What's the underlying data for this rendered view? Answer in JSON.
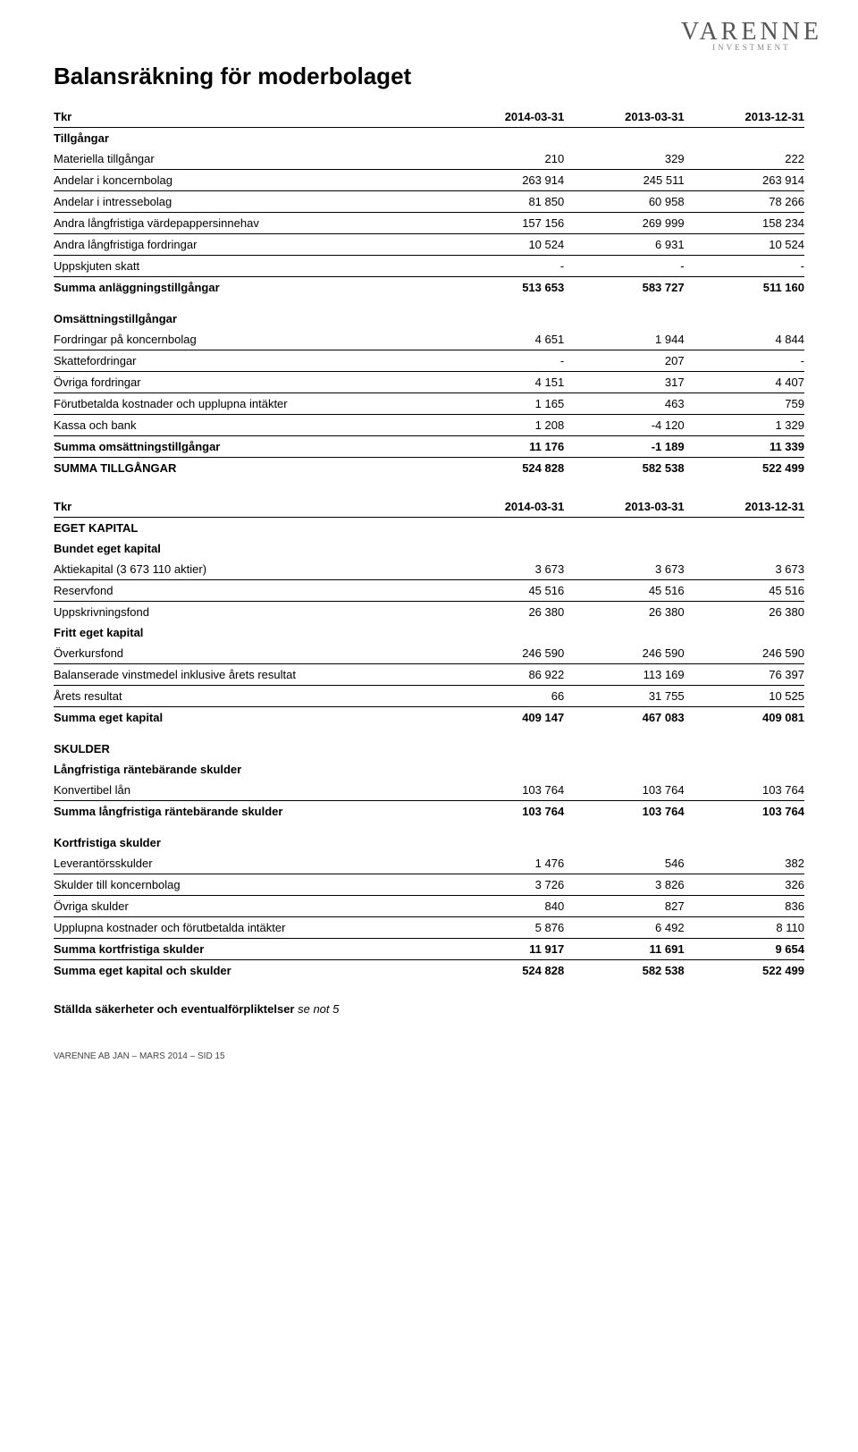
{
  "logo": {
    "top": "VARENNE",
    "bottom": "INVESTMENT"
  },
  "title": "Balansräkning för moderbolaget",
  "columns_top": [
    "Tkr",
    "2014-03-31",
    "2013-03-31",
    "2013-12-31"
  ],
  "columns_mid": [
    "Tkr",
    "2014-03-31",
    "2013-03-31",
    "2013-12-31"
  ],
  "sections": {
    "tillgangar": "Tillgångar",
    "omsattning": "Omsättningstillgångar",
    "eget_kapital": "EGET KAPITAL",
    "bundet": "Bundet eget kapital",
    "fritt": "Fritt eget kapital",
    "skulder": "SKULDER",
    "langfristiga": "Långfristiga räntebärande skulder",
    "kortfristiga": "Kortfristiga skulder"
  },
  "rows": {
    "materiella": {
      "label": "Materiella tillgångar",
      "v": [
        "210",
        "329",
        "222"
      ]
    },
    "andelar_koncern": {
      "label": "Andelar i koncernbolag",
      "v": [
        "263 914",
        "245 511",
        "263 914"
      ]
    },
    "andelar_intresse": {
      "label": "Andelar i intressebolag",
      "v": [
        "81 850",
        "60 958",
        "78 266"
      ]
    },
    "andra_lang_vp": {
      "label": "Andra långfristiga värdepappersinnehav",
      "v": [
        "157 156",
        "269 999",
        "158 234"
      ]
    },
    "andra_lang_fordr": {
      "label": "Andra långfristiga fordringar",
      "v": [
        "10 524",
        "6 931",
        "10 524"
      ]
    },
    "uppskjuten_skatt": {
      "label": "Uppskjuten skatt",
      "v": [
        "-",
        "-",
        "-"
      ]
    },
    "summa_anlagg": {
      "label": "Summa anläggningstillgångar",
      "v": [
        "513 653",
        "583 727",
        "511 160"
      ]
    },
    "fordr_koncern": {
      "label": "Fordringar på koncernbolag",
      "v": [
        "4 651",
        "1 944",
        "4 844"
      ]
    },
    "skattefordr": {
      "label": "Skattefordringar",
      "v": [
        "-",
        "207",
        "-"
      ]
    },
    "ovriga_fordr": {
      "label": "Övriga fordringar",
      "v": [
        "4 151",
        "317",
        "4 407"
      ]
    },
    "forutbet": {
      "label": "Förutbetalda kostnader och upplupna intäkter",
      "v": [
        "1 165",
        "463",
        "759"
      ]
    },
    "kassa": {
      "label": "Kassa och bank",
      "v": [
        "1 208",
        "-4 120",
        "1 329"
      ]
    },
    "summa_oms": {
      "label": "Summa omsättningstillgångar",
      "v": [
        "11 176",
        "-1 189",
        "11 339"
      ]
    },
    "summa_tillg": {
      "label": "SUMMA TILLGÅNGAR",
      "v": [
        "524 828",
        "582 538",
        "522 499"
      ]
    },
    "aktiekap": {
      "label": "Aktiekapital (3 673 110 aktier)",
      "v": [
        "3 673",
        "3 673",
        "3 673"
      ]
    },
    "reservfond": {
      "label": "Reservfond",
      "v": [
        "45 516",
        "45 516",
        "45 516"
      ]
    },
    "uppskriv": {
      "label": "Uppskrivningsfond",
      "v": [
        "26 380",
        "26 380",
        "26 380"
      ]
    },
    "overkurs": {
      "label": "Överkursfond",
      "v": [
        "246 590",
        "246 590",
        "246 590"
      ]
    },
    "balanserade": {
      "label": "Balanserade vinstmedel inklusive årets resultat",
      "v": [
        "86 922",
        "113 169",
        "76 397"
      ]
    },
    "arets_res": {
      "label": "Årets resultat",
      "v": [
        "66",
        "31 755",
        "10 525"
      ]
    },
    "summa_ek": {
      "label": "Summa eget kapital",
      "v": [
        "409 147",
        "467 083",
        "409 081"
      ]
    },
    "konvertibel": {
      "label": "Konvertibel lån",
      "v": [
        "103 764",
        "103 764",
        "103 764"
      ]
    },
    "summa_lang_sk": {
      "label": "Summa långfristiga räntebärande skulder",
      "v": [
        "103 764",
        "103 764",
        "103 764"
      ]
    },
    "leverantor": {
      "label": "Leverantörsskulder",
      "v": [
        "1 476",
        "546",
        "382"
      ]
    },
    "skulder_koncern": {
      "label": "Skulder till koncernbolag",
      "v": [
        "3 726",
        "3 826",
        "326"
      ]
    },
    "ovriga_sk": {
      "label": "Övriga skulder",
      "v": [
        "840",
        "827",
        "836"
      ]
    },
    "upplupna": {
      "label": "Upplupna kostnader och förutbetalda intäkter",
      "v": [
        "5 876",
        "6 492",
        "8 110"
      ]
    },
    "summa_kort_sk": {
      "label": "Summa kortfristiga skulder",
      "v": [
        "11 917",
        "11 691",
        "9 654"
      ]
    },
    "summa_ek_sk": {
      "label": "Summa eget kapital och skulder",
      "v": [
        "524 828",
        "582 538",
        "522 499"
      ]
    }
  },
  "note": {
    "bold": "Ställda säkerheter och eventualförpliktelser ",
    "italic": "se not 5"
  },
  "footer": "VARENNE AB JAN – MARS 2014 – SID 15"
}
